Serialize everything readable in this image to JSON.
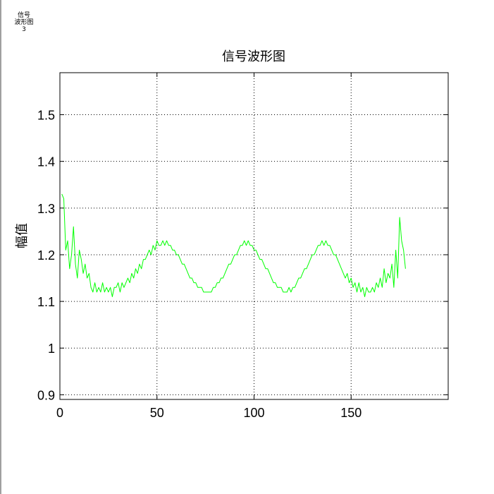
{
  "window_tag": {
    "line1": "信号",
    "line2": "波形图",
    "line3": "3"
  },
  "colors": {
    "series": "#00ff00",
    "axes": "#000000",
    "grid": "#000000",
    "background": "#ffffff"
  },
  "chart_data": {
    "type": "line",
    "title": "信号波形图",
    "xlabel": "",
    "ylabel": "幅值",
    "xlim": [
      0,
      200
    ],
    "ylim": [
      0.89,
      1.59
    ],
    "xticks": [
      0,
      50,
      100,
      150
    ],
    "yticks": [
      0.9,
      1,
      1.1,
      1.2,
      1.3,
      1.4,
      1.5
    ],
    "xtick_labels": [
      "0",
      "50",
      "100",
      "150"
    ],
    "ytick_labels": [
      "0.9",
      "1",
      "1.1",
      "1.2",
      "1.3",
      "1.4",
      "1.5"
    ],
    "grid": true,
    "grid_style": "dotted",
    "series": [
      {
        "values": [
          1.33,
          1.32,
          1.21,
          1.23,
          1.17,
          1.2,
          1.26,
          1.18,
          1.15,
          1.21,
          1.19,
          1.16,
          1.18,
          1.15,
          1.16,
          1.13,
          1.12,
          1.14,
          1.12,
          1.13,
          1.12,
          1.14,
          1.12,
          1.13,
          1.12,
          1.13,
          1.11,
          1.13,
          1.13,
          1.14,
          1.12,
          1.14,
          1.13,
          1.14,
          1.15,
          1.14,
          1.16,
          1.15,
          1.17,
          1.16,
          1.18,
          1.17,
          1.19,
          1.19,
          1.2,
          1.21,
          1.2,
          1.22,
          1.21,
          1.23,
          1.22,
          1.22,
          1.23,
          1.22,
          1.23,
          1.22,
          1.22,
          1.21,
          1.21,
          1.2,
          1.2,
          1.19,
          1.18,
          1.18,
          1.17,
          1.16,
          1.15,
          1.15,
          1.14,
          1.14,
          1.13,
          1.13,
          1.13,
          1.12,
          1.12,
          1.12,
          1.12,
          1.12,
          1.13,
          1.13,
          1.14,
          1.14,
          1.15,
          1.15,
          1.16,
          1.17,
          1.18,
          1.18,
          1.19,
          1.2,
          1.2,
          1.21,
          1.22,
          1.22,
          1.23,
          1.22,
          1.23,
          1.22,
          1.22,
          1.21,
          1.21,
          1.2,
          1.19,
          1.19,
          1.18,
          1.17,
          1.17,
          1.16,
          1.15,
          1.14,
          1.14,
          1.13,
          1.13,
          1.13,
          1.12,
          1.12,
          1.12,
          1.13,
          1.12,
          1.13,
          1.13,
          1.14,
          1.15,
          1.15,
          1.16,
          1.17,
          1.17,
          1.18,
          1.19,
          1.2,
          1.2,
          1.21,
          1.22,
          1.22,
          1.23,
          1.22,
          1.23,
          1.22,
          1.22,
          1.21,
          1.2,
          1.2,
          1.19,
          1.18,
          1.17,
          1.16,
          1.15,
          1.16,
          1.14,
          1.15,
          1.13,
          1.14,
          1.12,
          1.14,
          1.12,
          1.13,
          1.11,
          1.13,
          1.12,
          1.12,
          1.13,
          1.12,
          1.14,
          1.13,
          1.15,
          1.13,
          1.17,
          1.14,
          1.16,
          1.15,
          1.18,
          1.13,
          1.21,
          1.15,
          1.28,
          1.23,
          1.21,
          1.17
        ]
      }
    ]
  }
}
